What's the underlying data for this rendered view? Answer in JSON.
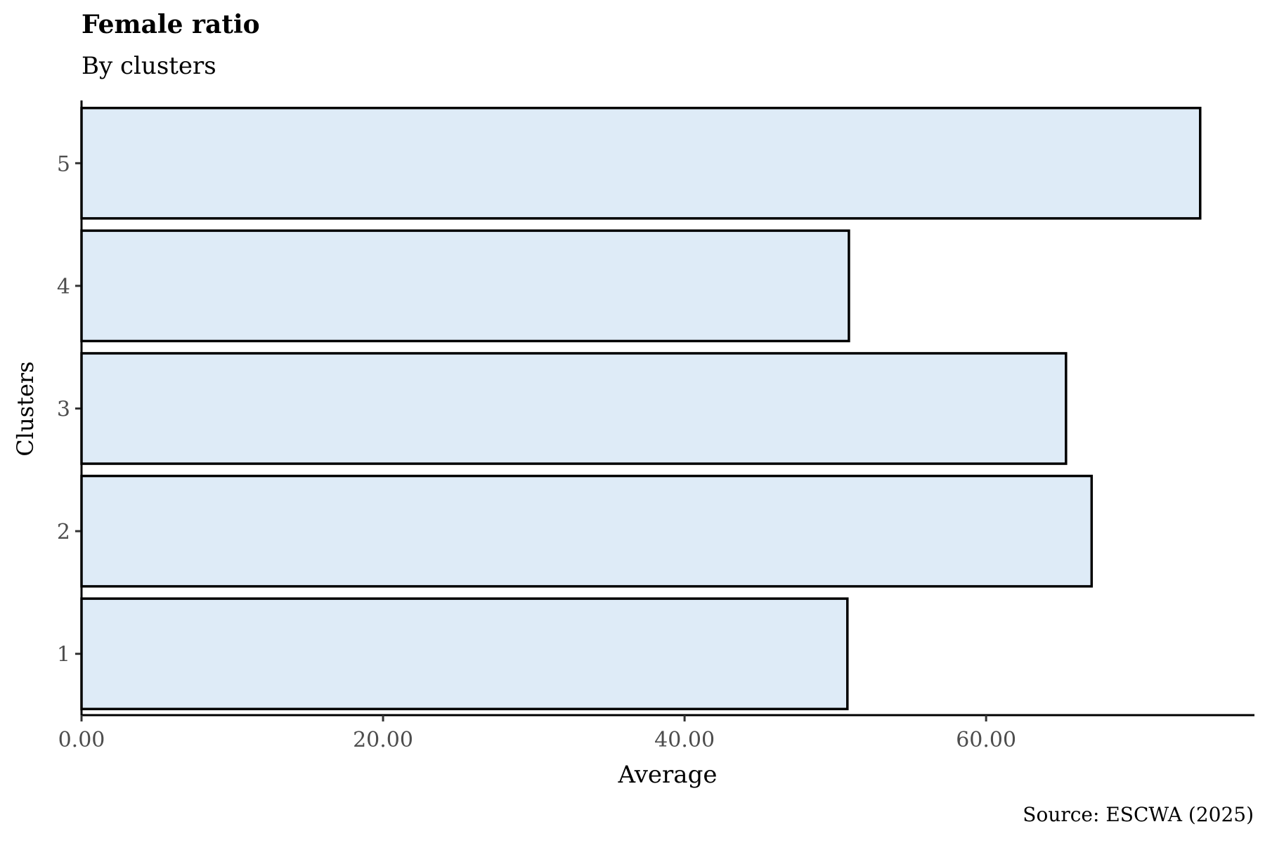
{
  "chart_data": {
    "type": "bar",
    "orientation": "horizontal",
    "title": "Female ratio",
    "subtitle": "By clusters",
    "xlabel": "Average",
    "ylabel": "Clusters",
    "caption": "Source: ESCWA (2025)",
    "categories": [
      "1",
      "2",
      "3",
      "4",
      "5"
    ],
    "values": [
      50.8,
      67.0,
      65.3,
      50.9,
      74.2
    ],
    "xlim": [
      0,
      77.8
    ],
    "xticks": [
      0,
      20,
      40,
      60
    ],
    "xtick_labels": [
      "0.00",
      "20.00",
      "40.00",
      "60.00"
    ],
    "bar_fill": "#deebf7",
    "bar_stroke": "#000000",
    "grid": false,
    "legend": "none"
  }
}
